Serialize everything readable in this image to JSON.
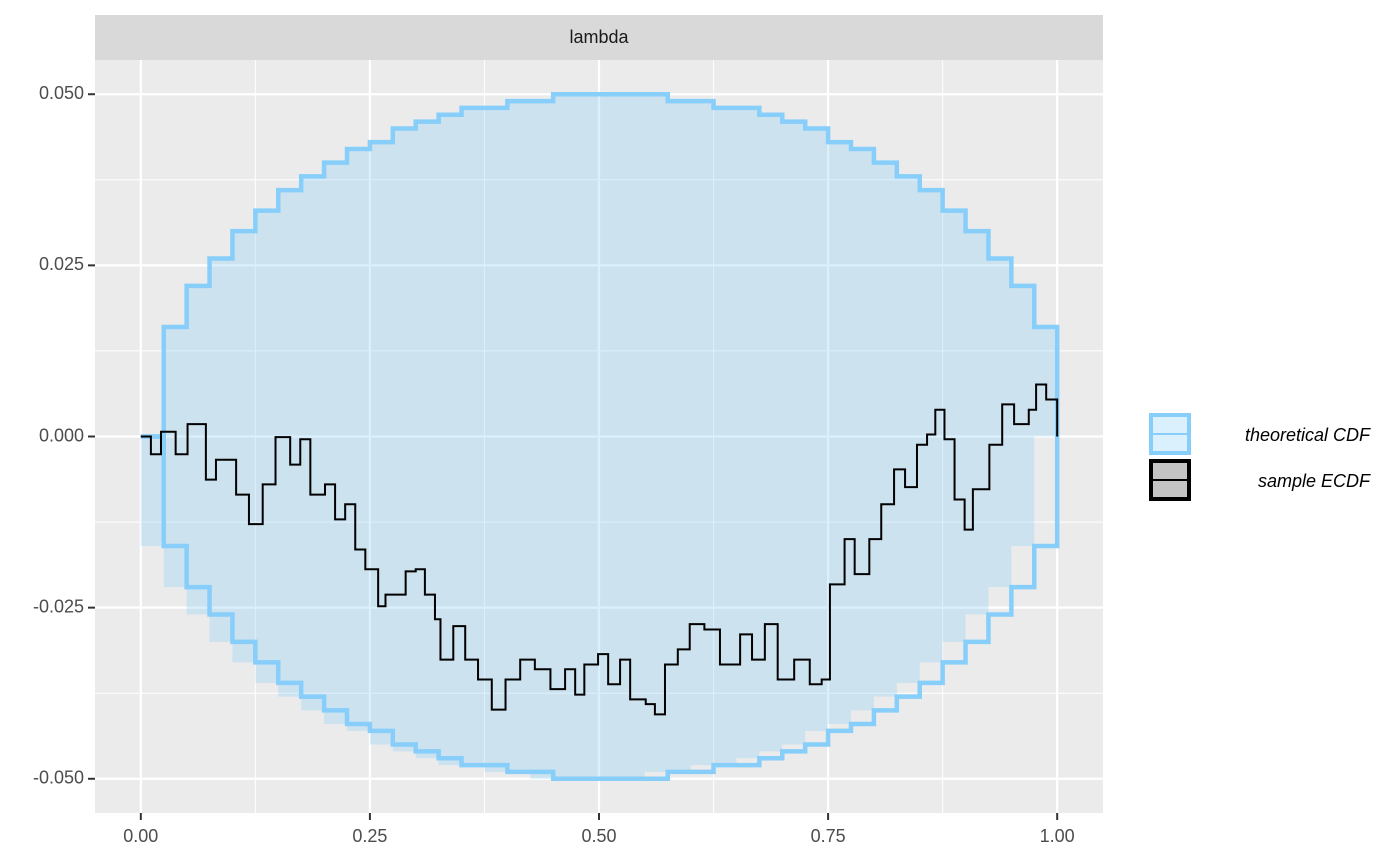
{
  "chart_data": {
    "type": "ecdf",
    "strip": "lambda",
    "xlim": [
      -0.05,
      1.05
    ],
    "ylim": [
      -0.055,
      0.055
    ],
    "xticks": [
      {
        "value": 0,
        "label": "0.00"
      },
      {
        "value": 0.25,
        "label": "0.25"
      },
      {
        "value": 0.5,
        "label": "0.50"
      },
      {
        "value": 0.75,
        "label": "0.75"
      },
      {
        "value": 1,
        "label": "1.00"
      }
    ],
    "yticks": [
      {
        "value": -0.05,
        "label": "-0.050"
      },
      {
        "value": -0.025,
        "label": "-0.025"
      },
      {
        "value": 0,
        "label": "0.000"
      },
      {
        "value": 0.025,
        "label": "0.025"
      },
      {
        "value": 0.05,
        "label": "0.050"
      }
    ],
    "grid": true,
    "legend": "right",
    "band": {
      "name": "theoretical CDF",
      "color": "#87cefa",
      "x": [
        0,
        0.025,
        0.05,
        0.075,
        0.1,
        0.125,
        0.15,
        0.175,
        0.2,
        0.225,
        0.25,
        0.275,
        0.3,
        0.325,
        0.35,
        0.375,
        0.4,
        0.425,
        0.45,
        0.475,
        0.5,
        0.525,
        0.55,
        0.575,
        0.6,
        0.625,
        0.65,
        0.675,
        0.7,
        0.725,
        0.75,
        0.775,
        0.8,
        0.825,
        0.85,
        0.875,
        0.9,
        0.925,
        0.95,
        0.975,
        1
      ],
      "upper": [
        0,
        0.016,
        0.022,
        0.026,
        0.03,
        0.033,
        0.036,
        0.038,
        0.04,
        0.042,
        0.043,
        0.045,
        0.046,
        0.047,
        0.048,
        0.048,
        0.049,
        0.049,
        0.05,
        0.05,
        0.05,
        0.05,
        0.05,
        0.049,
        0.049,
        0.048,
        0.048,
        0.047,
        0.046,
        0.045,
        0.043,
        0.042,
        0.04,
        0.038,
        0.036,
        0.033,
        0.03,
        0.026,
        0.022,
        0.016,
        0
      ],
      "lower": [
        0,
        -0.016,
        -0.022,
        -0.026,
        -0.03,
        -0.033,
        -0.036,
        -0.038,
        -0.04,
        -0.042,
        -0.043,
        -0.045,
        -0.046,
        -0.047,
        -0.048,
        -0.048,
        -0.049,
        -0.049,
        -0.05,
        -0.05,
        -0.05,
        -0.05,
        -0.05,
        -0.049,
        -0.049,
        -0.048,
        -0.048,
        -0.047,
        -0.046,
        -0.045,
        -0.043,
        -0.042,
        -0.04,
        -0.038,
        -0.036,
        -0.033,
        -0.03,
        -0.026,
        -0.022,
        -0.016,
        0
      ]
    },
    "series": [
      {
        "name": "sample ECDF",
        "color": "#000000",
        "x": [
          0,
          0.011,
          0.022,
          0.038,
          0.051,
          0.071,
          0.082,
          0.104,
          0.118,
          0.133,
          0.147,
          0.163,
          0.174,
          0.185,
          0.201,
          0.212,
          0.223,
          0.234,
          0.245,
          0.259,
          0.267,
          0.281,
          0.289,
          0.3,
          0.31,
          0.321,
          0.327,
          0.341,
          0.354,
          0.368,
          0.383,
          0.398,
          0.414,
          0.43,
          0.447,
          0.463,
          0.474,
          0.484,
          0.499,
          0.51,
          0.523,
          0.534,
          0.551,
          0.561,
          0.572,
          0.586,
          0.599,
          0.615,
          0.632,
          0.654,
          0.667,
          0.681,
          0.695,
          0.713,
          0.73,
          0.743,
          0.752,
          0.768,
          0.779,
          0.795,
          0.808,
          0.822,
          0.834,
          0.847,
          0.858,
          0.867,
          0.877,
          0.888,
          0.899,
          0.908,
          0.926,
          0.94,
          0.953,
          0.969,
          0.977,
          0.988,
          1
        ],
        "values": [
          0,
          -0.0026,
          0.0007,
          -0.0026,
          0.0018,
          -0.0063,
          -0.0034,
          -0.0085,
          -0.0128,
          -0.007,
          -0.0001,
          -0.0041,
          -0.0004,
          -0.0085,
          -0.007,
          -0.0121,
          -0.0099,
          -0.0165,
          -0.0194,
          -0.0248,
          -0.0231,
          -0.0231,
          -0.0197,
          -0.0194,
          -0.0231,
          -0.0267,
          -0.0326,
          -0.0277,
          -0.0326,
          -0.0355,
          -0.0399,
          -0.0355,
          -0.0326,
          -0.034,
          -0.0369,
          -0.034,
          -0.0377,
          -0.0333,
          -0.0318,
          -0.0362,
          -0.0326,
          -0.0384,
          -0.0391,
          -0.0406,
          -0.0333,
          -0.0311,
          -0.0274,
          -0.0282,
          -0.0333,
          -0.0289,
          -0.0326,
          -0.0274,
          -0.0355,
          -0.0326,
          -0.0362,
          -0.0355,
          -0.0216,
          -0.015,
          -0.0201,
          -0.015,
          -0.0099,
          -0.0048,
          -0.0074,
          -0.0012,
          0.0003,
          0.0039,
          -0.0004,
          -0.0092,
          -0.0136,
          -0.0077,
          -0.0012,
          0.0047,
          0.0018,
          0.0039,
          0.0076,
          0.0054,
          0
        ]
      }
    ]
  }
}
